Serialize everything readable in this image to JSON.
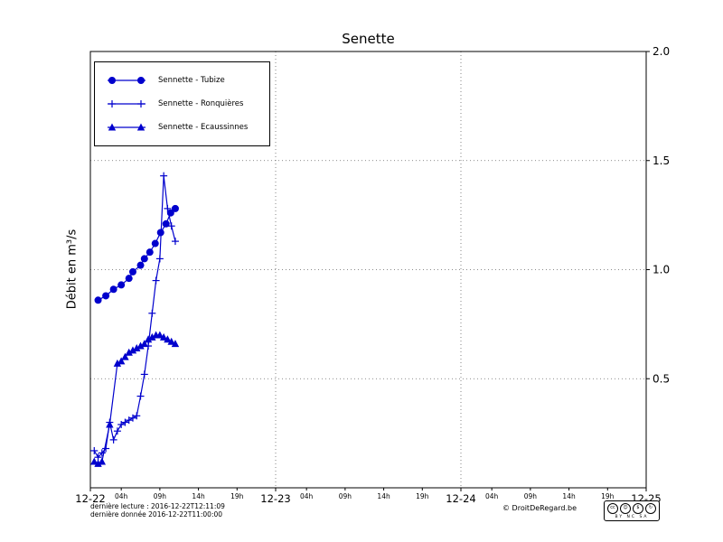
{
  "title": "Senette",
  "footer": {
    "last_reading": "dernière lecture : 2016-12-22T12:11:09",
    "last_data": "dernière donnée  2016-12-22T11:00:00",
    "copyright": "© DroitDeRegard.be",
    "license": {
      "label": "BY NC SA",
      "icons": [
        {
          "name": "cc-icon",
          "glyph": "cc"
        },
        {
          "name": "attribution-icon",
          "glyph": "☺"
        },
        {
          "name": "non-commercial-icon",
          "glyph": "$"
        },
        {
          "name": "share-alike-icon",
          "glyph": "↻"
        }
      ]
    }
  },
  "chart_data": {
    "type": "line",
    "title": "Senette",
    "xlabel": "",
    "ylabel": "Débit en m³/s",
    "x_unit": "hours since 2016-12-22 00:00",
    "xlim": [
      0,
      72
    ],
    "ylim": [
      0,
      2.0
    ],
    "grid": "dotted",
    "legend_position": "upper left",
    "yticks": [
      {
        "value": 0.5,
        "label": "0.5"
      },
      {
        "value": 1.0,
        "label": "1.0"
      },
      {
        "value": 1.5,
        "label": "1.5"
      },
      {
        "value": 2.0,
        "label": "2.0"
      }
    ],
    "x_major_ticks": [
      {
        "pos": 0,
        "label": "12-22"
      },
      {
        "pos": 24,
        "label": "12-23"
      },
      {
        "pos": 48,
        "label": "12-24"
      },
      {
        "pos": 72,
        "label": "12-25"
      }
    ],
    "x_minor_ticks": [
      {
        "pos": 4,
        "label": "04h"
      },
      {
        "pos": 9,
        "label": "09h"
      },
      {
        "pos": 14,
        "label": "14h"
      },
      {
        "pos": 19,
        "label": "19h"
      },
      {
        "pos": 28,
        "label": "04h"
      },
      {
        "pos": 33,
        "label": "09h"
      },
      {
        "pos": 38,
        "label": "14h"
      },
      {
        "pos": 43,
        "label": "19h"
      },
      {
        "pos": 52,
        "label": "04h"
      },
      {
        "pos": 57,
        "label": "09h"
      },
      {
        "pos": 62,
        "label": "14h"
      },
      {
        "pos": 67,
        "label": "19h"
      }
    ],
    "series": [
      {
        "id": "tubize",
        "name": "Sennette - Tubize",
        "marker": "circle",
        "color": "#0000cd",
        "points": [
          [
            1,
            0.86
          ],
          [
            2,
            0.88
          ],
          [
            3,
            0.91
          ],
          [
            4,
            0.93
          ],
          [
            5,
            0.96
          ],
          [
            5.5,
            0.99
          ],
          [
            6.5,
            1.02
          ],
          [
            7,
            1.05
          ],
          [
            7.7,
            1.08
          ],
          [
            8.4,
            1.12
          ],
          [
            9.1,
            1.17
          ],
          [
            9.8,
            1.21
          ],
          [
            10.4,
            1.26
          ],
          [
            11,
            1.28
          ]
        ]
      },
      {
        "id": "ronquieres",
        "name": "Sennette - Ronquières",
        "marker": "plus",
        "color": "#0000cd",
        "points": [
          [
            0.5,
            0.17
          ],
          [
            1,
            0.14
          ],
          [
            1.5,
            0.16
          ],
          [
            2,
            0.18
          ],
          [
            2.5,
            0.3
          ],
          [
            3,
            0.22
          ],
          [
            3.5,
            0.26
          ],
          [
            4,
            0.29
          ],
          [
            4.5,
            0.3
          ],
          [
            5,
            0.31
          ],
          [
            5.5,
            0.32
          ],
          [
            6,
            0.33
          ],
          [
            6.5,
            0.42
          ],
          [
            7,
            0.52
          ],
          [
            7.5,
            0.65
          ],
          [
            8,
            0.8
          ],
          [
            8.5,
            0.95
          ],
          [
            9,
            1.05
          ],
          [
            9.5,
            1.43
          ],
          [
            10,
            1.28
          ],
          [
            10.5,
            1.2
          ],
          [
            11,
            1.13
          ]
        ]
      },
      {
        "id": "ecaussinnes",
        "name": "Sennette - Ecaussinnes",
        "marker": "triangle",
        "color": "#0000cd",
        "points": [
          [
            0.5,
            0.12
          ],
          [
            1,
            0.11
          ],
          [
            1.5,
            0.12
          ],
          [
            2.5,
            0.29
          ],
          [
            3.5,
            0.57
          ],
          [
            4,
            0.58
          ],
          [
            4.5,
            0.6
          ],
          [
            5,
            0.62
          ],
          [
            5.5,
            0.63
          ],
          [
            6,
            0.64
          ],
          [
            6.5,
            0.65
          ],
          [
            7,
            0.66
          ],
          [
            7.5,
            0.68
          ],
          [
            8,
            0.69
          ],
          [
            8.5,
            0.7
          ],
          [
            9,
            0.7
          ],
          [
            9.5,
            0.69
          ],
          [
            10,
            0.68
          ],
          [
            10.5,
            0.67
          ],
          [
            11,
            0.66
          ]
        ]
      }
    ]
  }
}
